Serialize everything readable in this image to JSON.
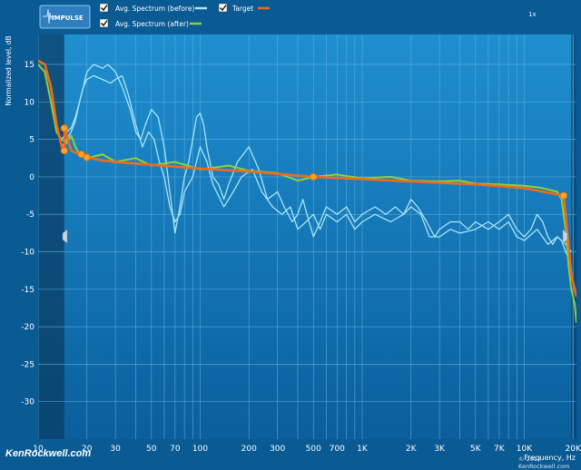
{
  "toolbar": {
    "impulse_label": "IMPULSE",
    "zoom_label": "1x"
  },
  "legend": [
    {
      "label": "Avg. Spectrum (before)",
      "checked": true,
      "color": "#a9e4f5"
    },
    {
      "label": "Target",
      "checked": true,
      "color": "#f06a1c"
    },
    {
      "label": "Avg. Spectrum (after)",
      "checked": true,
      "color": "#8ed23a"
    }
  ],
  "watermark": {
    "text": "KenRockwell.com",
    "copyright": "© 2012 KenRockwell.com"
  },
  "colors": {
    "background": "#0a5a94",
    "plot_top": "#1f8fd0",
    "plot_bottom": "#0a5f9c",
    "grid": "#5eaede",
    "before": "#a9e4f5",
    "after": "#8ed23a",
    "target": "#f06a1c",
    "shaded_band": "#0b3d66"
  },
  "chart_data": {
    "type": "line",
    "xlabel": "Frequency, Hz",
    "ylabel": "Normalized level, dB",
    "x_scale": "log",
    "xlim": [
      10,
      21000
    ],
    "ylim": [
      -35,
      19
    ],
    "grid": true,
    "legend_position": "top-left",
    "x_ticks": [
      {
        "value": 10,
        "label": "10"
      },
      {
        "value": 20,
        "label": "20"
      },
      {
        "value": 30,
        "label": "30"
      },
      {
        "value": 50,
        "label": "50"
      },
      {
        "value": 70,
        "label": "70"
      },
      {
        "value": 100,
        "label": "100"
      },
      {
        "value": 200,
        "label": "200"
      },
      {
        "value": 300,
        "label": "300"
      },
      {
        "value": 500,
        "label": "500"
      },
      {
        "value": 700,
        "label": "700"
      },
      {
        "value": 1000,
        "label": "1K"
      },
      {
        "value": 2000,
        "label": "2K"
      },
      {
        "value": 3000,
        "label": "3K"
      },
      {
        "value": 5000,
        "label": "5K"
      },
      {
        "value": 7000,
        "label": "7K"
      },
      {
        "value": 10000,
        "label": "10K"
      },
      {
        "value": 20000,
        "label": "20K"
      }
    ],
    "y_ticks": [
      15,
      10,
      5,
      0,
      -5,
      -10,
      -15,
      -20,
      -25,
      -30
    ],
    "shaded_regions": [
      {
        "from": 10,
        "to": 14.5
      },
      {
        "from": 19500,
        "to": 21000
      }
    ],
    "series": [
      {
        "name": "Avg. Spectrum (before)",
        "points": [
          [
            14,
            5
          ],
          [
            15,
            6
          ],
          [
            16,
            6.5
          ],
          [
            17,
            8
          ],
          [
            18,
            10
          ],
          [
            19,
            12
          ],
          [
            20,
            14
          ],
          [
            22,
            15
          ],
          [
            25,
            14.5
          ],
          [
            27,
            15
          ],
          [
            30,
            14
          ],
          [
            33,
            12
          ],
          [
            37,
            9
          ],
          [
            40,
            6
          ],
          [
            43,
            5
          ],
          [
            46,
            7
          ],
          [
            50,
            9
          ],
          [
            55,
            8
          ],
          [
            60,
            4
          ],
          [
            65,
            -2
          ],
          [
            70,
            -7.5
          ],
          [
            75,
            -4
          ],
          [
            80,
            0
          ],
          [
            85,
            2
          ],
          [
            90,
            5
          ],
          [
            95,
            8
          ],
          [
            100,
            8.5
          ],
          [
            105,
            7
          ],
          [
            110,
            4
          ],
          [
            120,
            0
          ],
          [
            130,
            -1
          ],
          [
            140,
            -3
          ],
          [
            150,
            -1
          ],
          [
            170,
            2
          ],
          [
            200,
            4
          ],
          [
            230,
            1
          ],
          [
            260,
            -3
          ],
          [
            300,
            -2
          ],
          [
            330,
            -4
          ],
          [
            370,
            -6
          ],
          [
            400,
            -5
          ],
          [
            430,
            -3
          ],
          [
            470,
            -6
          ],
          [
            500,
            -8
          ],
          [
            550,
            -6
          ],
          [
            600,
            -4
          ],
          [
            700,
            -5
          ],
          [
            800,
            -4
          ],
          [
            900,
            -6
          ],
          [
            1000,
            -5
          ],
          [
            1200,
            -4
          ],
          [
            1400,
            -5
          ],
          [
            1600,
            -4
          ],
          [
            1800,
            -5
          ],
          [
            2000,
            -3
          ],
          [
            2200,
            -4
          ],
          [
            2500,
            -6
          ],
          [
            2800,
            -8
          ],
          [
            3000,
            -7
          ],
          [
            3500,
            -6
          ],
          [
            4000,
            -6
          ],
          [
            4500,
            -7
          ],
          [
            5000,
            -6
          ],
          [
            6000,
            -7
          ],
          [
            7000,
            -6
          ],
          [
            8000,
            -5
          ],
          [
            9000,
            -7
          ],
          [
            10000,
            -8
          ],
          [
            11000,
            -7
          ],
          [
            12000,
            -5
          ],
          [
            13000,
            -6
          ],
          [
            14000,
            -8
          ],
          [
            15000,
            -9
          ],
          [
            16000,
            -8
          ],
          [
            17000,
            -8.5
          ],
          [
            18000,
            -10
          ],
          [
            19000,
            -11
          ],
          [
            19500,
            -12
          ]
        ]
      },
      {
        "name": "Avg. Spectrum (before)",
        "points": [
          [
            14,
            4
          ],
          [
            15,
            5
          ],
          [
            16,
            6
          ],
          [
            17,
            7.5
          ],
          [
            18,
            10
          ],
          [
            19,
            12
          ],
          [
            20,
            13
          ],
          [
            22,
            13.5
          ],
          [
            25,
            13
          ],
          [
            28,
            12.5
          ],
          [
            30,
            13
          ],
          [
            33,
            13.5
          ],
          [
            36,
            11
          ],
          [
            40,
            7
          ],
          [
            44,
            4
          ],
          [
            48,
            6
          ],
          [
            52,
            5
          ],
          [
            56,
            2
          ],
          [
            60,
            0
          ],
          [
            65,
            -4
          ],
          [
            70,
            -6
          ],
          [
            75,
            -5
          ],
          [
            80,
            -2
          ],
          [
            90,
            0
          ],
          [
            100,
            4
          ],
          [
            110,
            2
          ],
          [
            120,
            -1
          ],
          [
            140,
            -4
          ],
          [
            160,
            -2
          ],
          [
            180,
            0
          ],
          [
            210,
            1
          ],
          [
            240,
            -2
          ],
          [
            280,
            -4
          ],
          [
            320,
            -5
          ],
          [
            360,
            -4
          ],
          [
            400,
            -7
          ],
          [
            450,
            -6
          ],
          [
            500,
            -5
          ],
          [
            550,
            -7
          ],
          [
            600,
            -5
          ],
          [
            700,
            -6
          ],
          [
            800,
            -5
          ],
          [
            900,
            -7
          ],
          [
            1000,
            -6
          ],
          [
            1200,
            -5
          ],
          [
            1500,
            -6
          ],
          [
            1800,
            -5
          ],
          [
            2000,
            -4
          ],
          [
            2300,
            -5
          ],
          [
            2600,
            -8
          ],
          [
            3000,
            -8
          ],
          [
            3500,
            -7
          ],
          [
            4000,
            -7.5
          ],
          [
            5000,
            -7
          ],
          [
            6000,
            -6
          ],
          [
            7000,
            -7
          ],
          [
            8000,
            -6
          ],
          [
            9000,
            -8
          ],
          [
            10000,
            -8.5
          ],
          [
            12000,
            -7
          ],
          [
            14000,
            -9
          ],
          [
            16000,
            -8
          ],
          [
            18000,
            -9
          ],
          [
            19500,
            -10
          ]
        ]
      },
      {
        "name": "Avg. Spectrum (after)",
        "points": [
          [
            10,
            15
          ],
          [
            11,
            14
          ],
          [
            12,
            10
          ],
          [
            13,
            6
          ],
          [
            14,
            5
          ],
          [
            15,
            4.5
          ],
          [
            16,
            5.5
          ],
          [
            17,
            4
          ],
          [
            18,
            3
          ],
          [
            20,
            2.5
          ],
          [
            25,
            3
          ],
          [
            30,
            2
          ],
          [
            40,
            2.5
          ],
          [
            50,
            1.5
          ],
          [
            70,
            2
          ],
          [
            100,
            1
          ],
          [
            150,
            1.5
          ],
          [
            200,
            0.8
          ],
          [
            300,
            0.5
          ],
          [
            400,
            -0.5
          ],
          [
            500,
            0
          ],
          [
            700,
            0.3
          ],
          [
            1000,
            -0.2
          ],
          [
            1500,
            0
          ],
          [
            2000,
            -0.5
          ],
          [
            3000,
            -0.6
          ],
          [
            4000,
            -0.5
          ],
          [
            5000,
            -0.9
          ],
          [
            7000,
            -1
          ],
          [
            10000,
            -1.2
          ],
          [
            13000,
            -1.5
          ],
          [
            16000,
            -2
          ],
          [
            17000,
            -3
          ],
          [
            18000,
            -7
          ],
          [
            18800,
            -12
          ],
          [
            19500,
            -15
          ],
          [
            20500,
            -17
          ],
          [
            21000,
            -19.5
          ]
        ]
      },
      {
        "name": "Target",
        "points": [
          [
            10,
            15.5
          ],
          [
            11,
            15
          ],
          [
            12,
            12
          ],
          [
            13,
            7
          ],
          [
            14,
            4
          ],
          [
            14.5,
            3.5
          ],
          [
            14.6,
            6.5
          ],
          [
            16,
            3.5
          ],
          [
            18,
            3
          ],
          [
            20,
            2.6
          ],
          [
            25,
            2.2
          ],
          [
            30,
            2
          ],
          [
            50,
            1.6
          ],
          [
            100,
            1.1
          ],
          [
            200,
            0.7
          ],
          [
            300,
            0.4
          ],
          [
            500,
            0
          ],
          [
            1000,
            -0.3
          ],
          [
            2000,
            -0.6
          ],
          [
            5000,
            -1
          ],
          [
            10000,
            -1.5
          ],
          [
            17500,
            -2.5
          ],
          [
            19500,
            -13
          ],
          [
            21000,
            -16
          ]
        ],
        "control_points": [
          [
            14.5,
            6.5
          ],
          [
            14.5,
            3.5
          ],
          [
            18.5,
            3
          ],
          [
            20,
            2.6
          ],
          [
            500,
            0
          ],
          [
            17500,
            -2.5
          ]
        ]
      }
    ]
  }
}
